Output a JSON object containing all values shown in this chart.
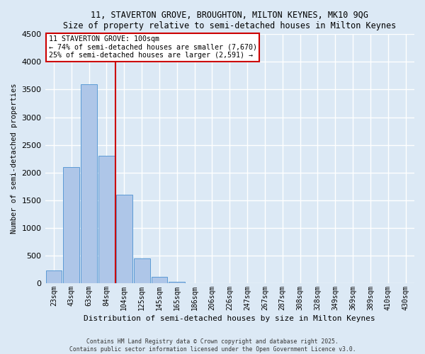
{
  "title_line1": "11, STAVERTON GROVE, BROUGHTON, MILTON KEYNES, MK10 9QG",
  "title_line2": "Size of property relative to semi-detached houses in Milton Keynes",
  "xlabel": "Distribution of semi-detached houses by size in Milton Keynes",
  "ylabel": "Number of semi-detached properties",
  "categories": [
    "23sqm",
    "43sqm",
    "63sqm",
    "84sqm",
    "104sqm",
    "125sqm",
    "145sqm",
    "165sqm",
    "186sqm",
    "206sqm",
    "226sqm",
    "247sqm",
    "267sqm",
    "287sqm",
    "308sqm",
    "328sqm",
    "349sqm",
    "369sqm",
    "389sqm",
    "410sqm",
    "430sqm"
  ],
  "values": [
    230,
    2100,
    3600,
    2300,
    1600,
    450,
    120,
    30,
    0,
    0,
    0,
    0,
    0,
    0,
    0,
    0,
    0,
    0,
    0,
    0,
    0
  ],
  "bar_color": "#aec6e8",
  "bar_edge_color": "#5b9bd5",
  "background_color": "#dce9f5",
  "grid_color": "#ffffff",
  "vline_x": 3.5,
  "property_label": "11 STAVERTON GROVE: 100sqm",
  "annotation_line1": "← 74% of semi-detached houses are smaller (7,670)",
  "annotation_line2": "25% of semi-detached houses are larger (2,591) →",
  "annotation_box_color": "#ffffff",
  "annotation_box_edge_color": "#cc0000",
  "vline_color": "#cc0000",
  "ylim": [
    0,
    4500
  ],
  "yticks": [
    0,
    500,
    1000,
    1500,
    2000,
    2500,
    3000,
    3500,
    4000,
    4500
  ],
  "footnote1": "Contains HM Land Registry data © Crown copyright and database right 2025.",
  "footnote2": "Contains public sector information licensed under the Open Government Licence v3.0."
}
